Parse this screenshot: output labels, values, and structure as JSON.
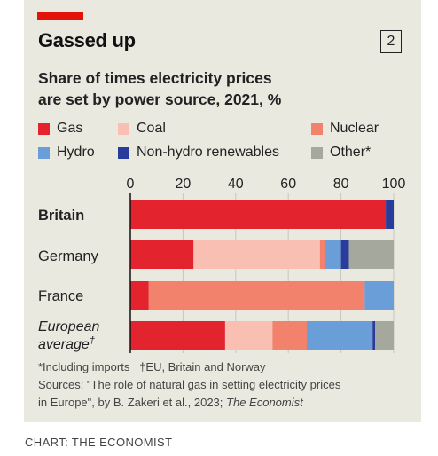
{
  "header": {
    "title": "Gassed up",
    "chart_number": "2",
    "subtitle_line1": "Share of times electricity prices",
    "subtitle_line2": "are set by power source, 2021, %"
  },
  "colors": {
    "panel": "#e9e9e0",
    "brand_red": "#e3120b"
  },
  "chart_data": {
    "type": "bar",
    "orientation": "horizontal",
    "stacked": true,
    "title": "Gassed up",
    "subtitle": "Share of times electricity prices are set by power source, 2021, %",
    "categories": [
      "Britain",
      "Germany",
      "France",
      "European average†"
    ],
    "xlim": [
      0,
      100
    ],
    "xticks": [
      0,
      20,
      40,
      60,
      80,
      100
    ],
    "legend_position": "top",
    "series": [
      {
        "name": "Gas",
        "color": "#e3232e",
        "values": [
          97,
          24,
          7,
          36
        ]
      },
      {
        "name": "Coal",
        "color": "#f8bfb2",
        "values": [
          0,
          48,
          0,
          18
        ]
      },
      {
        "name": "Nuclear",
        "color": "#f2826b",
        "values": [
          0,
          2,
          82,
          13
        ]
      },
      {
        "name": "Hydro",
        "color": "#6a9ed8",
        "values": [
          0,
          6,
          11,
          25
        ]
      },
      {
        "name": "Non-hydro renewables",
        "color": "#2a3c9b",
        "values": [
          3,
          3,
          0,
          1
        ]
      },
      {
        "name": "Other*",
        "color": "#a5a89c",
        "values": [
          0,
          17,
          0,
          7
        ]
      }
    ]
  },
  "footnotes": {
    "line1_a": "*Including imports",
    "line1_b": "†EU, Britain and Norway",
    "line2": "Sources: \"The role of natural gas in setting electricity prices",
    "line3_a": "in Europe\", by B. Zakeri et al., 2023;",
    "line3_b": "The Economist"
  },
  "credit": "CHART: THE ECONOMIST"
}
